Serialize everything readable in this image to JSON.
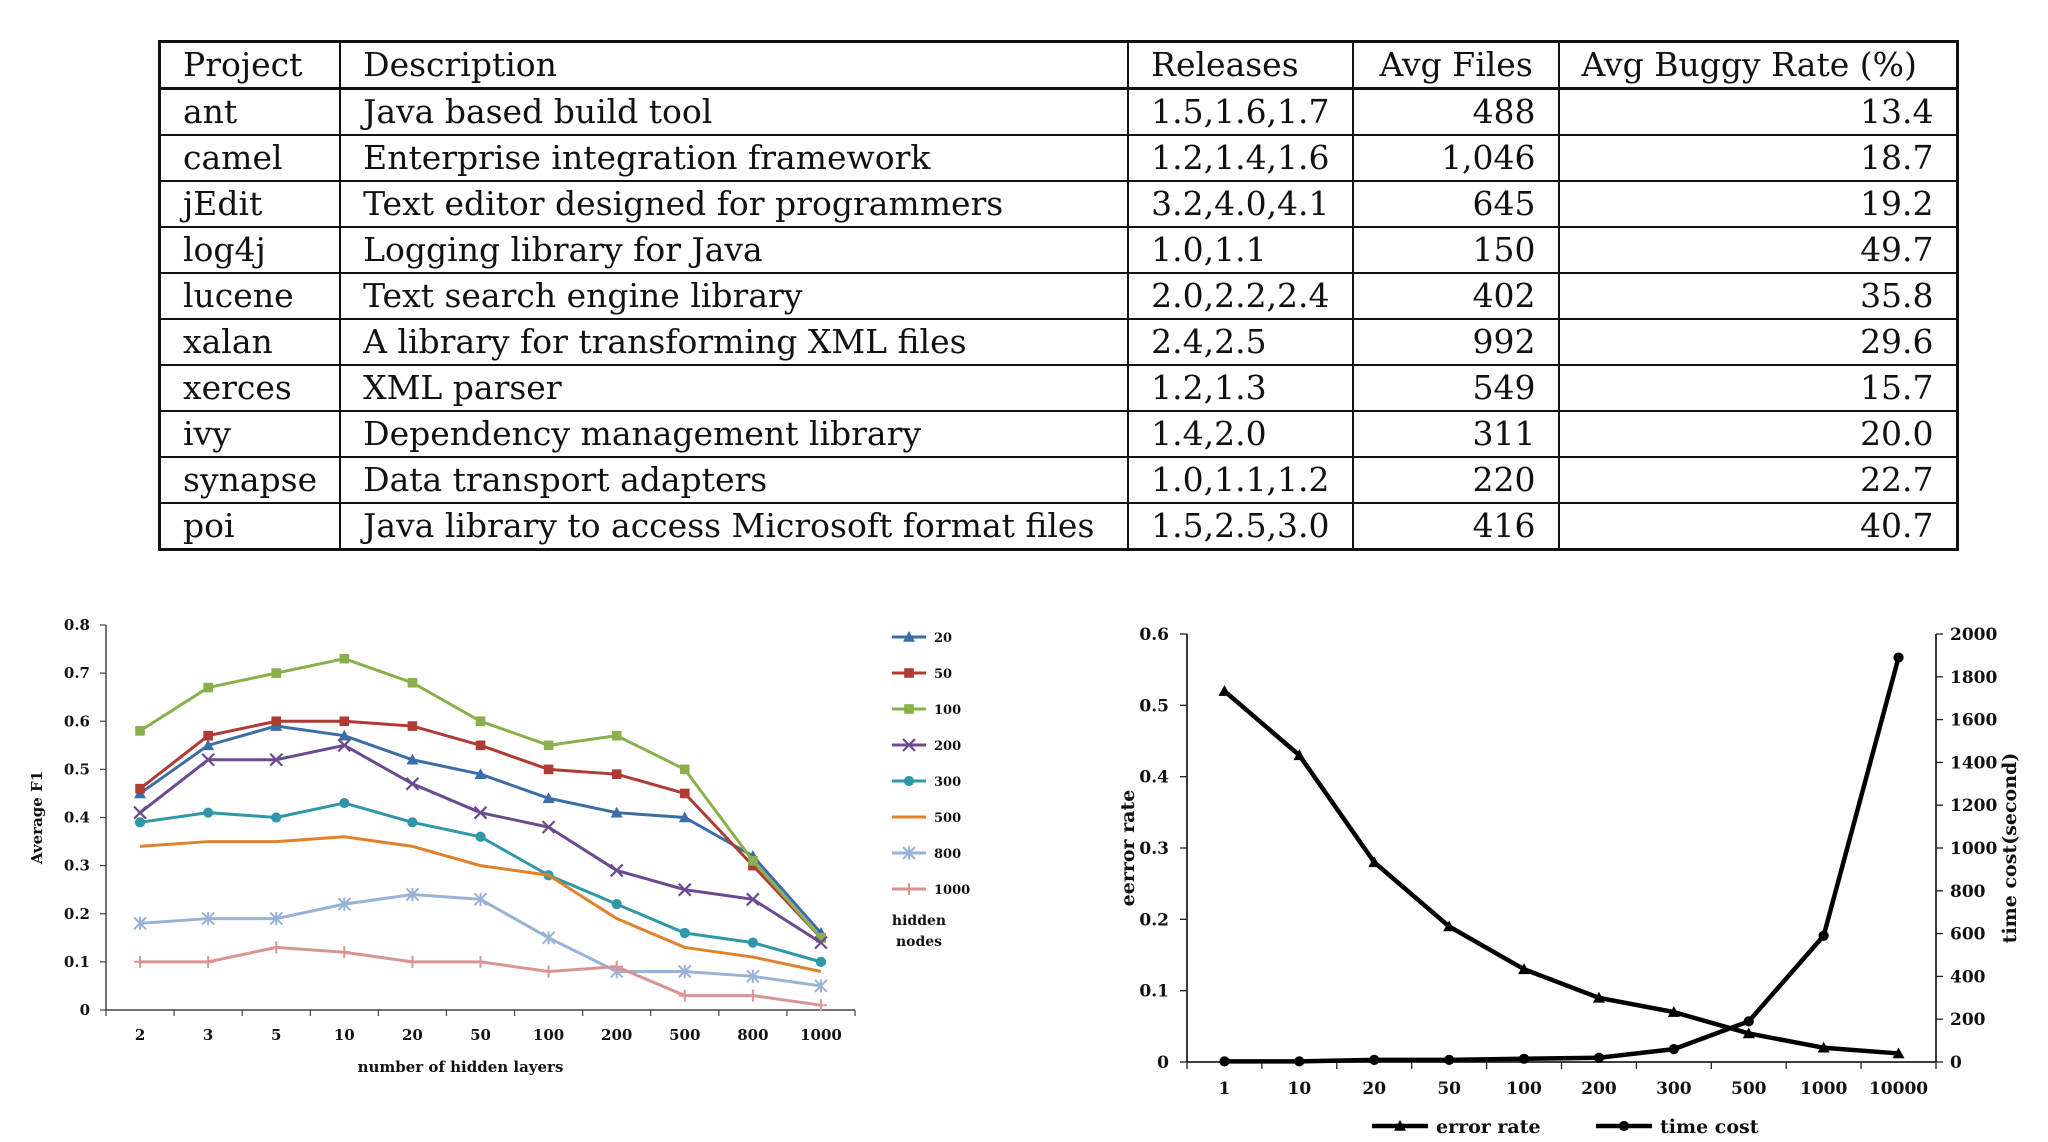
{
  "table": {
    "columns": [
      "Project",
      "Description",
      "Releases",
      "Avg Files",
      "Avg Buggy Rate (%)"
    ],
    "rows": [
      [
        "ant",
        "Java based build tool",
        "1.5,1.6,1.7",
        "488",
        "13.4"
      ],
      [
        "camel",
        "Enterprise integration framework",
        "1.2,1.4,1.6",
        "1,046",
        "18.7"
      ],
      [
        "jEdit",
        "Text editor designed for programmers",
        "3.2,4.0,4.1",
        "645",
        "19.2"
      ],
      [
        "log4j",
        "Logging library for Java",
        "1.0,1.1",
        "150",
        "49.7"
      ],
      [
        "lucene",
        "Text search engine library",
        "2.0,2.2,2.4",
        "402",
        "35.8"
      ],
      [
        "xalan",
        "A library for transforming XML files",
        "2.4,2.5",
        "992",
        "29.6"
      ],
      [
        "xerces",
        "XML parser",
        "1.2,1.3",
        "549",
        "15.7"
      ],
      [
        "ivy",
        "Dependency management library",
        "1.4,2.0",
        "311",
        "20.0"
      ],
      [
        "synapse",
        "Data transport adapters",
        "1.0,1.1,1.2",
        "220",
        "22.7"
      ],
      [
        "poi",
        "Java library to access Microsoft format files",
        "1.5,2.5,3.0",
        "416",
        "40.7"
      ]
    ]
  },
  "chart_data": [
    {
      "type": "line",
      "title": "",
      "xlabel": "number  of hidden  layers",
      "ylabel": "Average F1",
      "ylim": [
        0,
        0.8
      ],
      "yticks": [
        "0",
        "0.1",
        "0.2",
        "0.3",
        "0.4",
        "0.5",
        "0.6",
        "0.7",
        "0.8"
      ],
      "categories": [
        "2",
        "3",
        "5",
        "10",
        "20",
        "50",
        "100",
        "200",
        "500",
        "800",
        "1000"
      ],
      "legend_title": [
        "hidden",
        "nodes"
      ],
      "legend_position": "right",
      "series": [
        {
          "name": "20",
          "color": "#3b6ea8",
          "marker": "triangle",
          "values": [
            0.45,
            0.55,
            0.59,
            0.57,
            0.52,
            0.49,
            0.44,
            0.41,
            0.4,
            0.32,
            0.16
          ]
        },
        {
          "name": "50",
          "color": "#b03a34",
          "marker": "square",
          "values": [
            0.46,
            0.57,
            0.6,
            0.6,
            0.59,
            0.55,
            0.5,
            0.49,
            0.45,
            0.3,
            0.15
          ]
        },
        {
          "name": "100",
          "color": "#89b04a",
          "marker": "square",
          "values": [
            0.58,
            0.67,
            0.7,
            0.73,
            0.68,
            0.6,
            0.55,
            0.57,
            0.5,
            0.31,
            0.15
          ]
        },
        {
          "name": "200",
          "color": "#6b4a8f",
          "marker": "x",
          "values": [
            0.41,
            0.52,
            0.52,
            0.55,
            0.47,
            0.41,
            0.38,
            0.29,
            0.25,
            0.23,
            0.14
          ]
        },
        {
          "name": "300",
          "color": "#2f97a8",
          "marker": "circle",
          "values": [
            0.39,
            0.41,
            0.4,
            0.43,
            0.39,
            0.36,
            0.28,
            0.22,
            0.16,
            0.14,
            0.1
          ]
        },
        {
          "name": "500",
          "color": "#e0822c",
          "marker": "none",
          "values": [
            0.34,
            0.35,
            0.35,
            0.36,
            0.34,
            0.3,
            0.28,
            0.19,
            0.13,
            0.11,
            0.08
          ]
        },
        {
          "name": "800",
          "color": "#98b2d8",
          "marker": "star",
          "values": [
            0.18,
            0.19,
            0.19,
            0.22,
            0.24,
            0.23,
            0.15,
            0.08,
            0.08,
            0.07,
            0.05
          ]
        },
        {
          "name": "1000",
          "color": "#d99593",
          "marker": "plus",
          "values": [
            0.1,
            0.1,
            0.13,
            0.12,
            0.1,
            0.1,
            0.08,
            0.09,
            0.03,
            0.03,
            0.01
          ]
        }
      ]
    },
    {
      "type": "line",
      "title": "",
      "xlabel": "",
      "ylabel": "eerror rate",
      "y2label": "time cost(second)",
      "ylim": [
        0,
        0.6
      ],
      "y2lim": [
        0,
        2000
      ],
      "yticks": [
        "0",
        "0.1",
        "0.2",
        "0.3",
        "0.4",
        "0.5",
        "0.6"
      ],
      "y2ticks": [
        "0",
        "200",
        "400",
        "600",
        "800",
        "1000",
        "1200",
        "1400",
        "1600",
        "1800",
        "2000"
      ],
      "categories": [
        "1",
        "10",
        "20",
        "50",
        "100",
        "200",
        "300",
        "500",
        "1000",
        "10000"
      ],
      "legend_position": "bottom",
      "series": [
        {
          "name": "error rate",
          "axis": "left",
          "color": "#000000",
          "marker": "triangle",
          "values": [
            0.52,
            0.43,
            0.28,
            0.19,
            0.13,
            0.09,
            0.07,
            0.04,
            0.02,
            0.012
          ]
        },
        {
          "name": "time cost",
          "axis": "right",
          "color": "#000000",
          "marker": "circle",
          "values": [
            3,
            3,
            10,
            10,
            15,
            20,
            60,
            190,
            590,
            1890
          ]
        }
      ]
    }
  ]
}
